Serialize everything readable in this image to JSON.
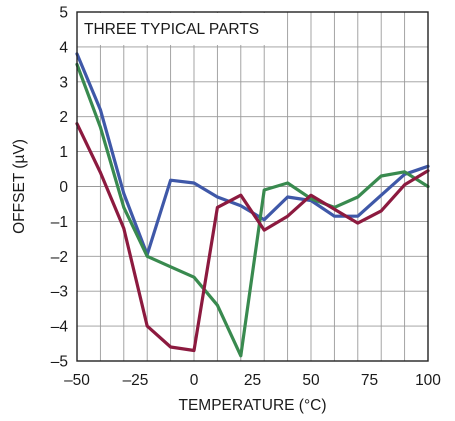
{
  "chart_data": {
    "type": "line",
    "annotation": "THREE TYPICAL PARTS",
    "xlabel": "TEMPERATURE (°C)",
    "ylabel": "OFFSET (µV)",
    "xlim": [
      -50,
      100
    ],
    "ylim": [
      -5,
      5
    ],
    "grid": true,
    "x_ticks": [
      -50,
      -40,
      -30,
      -20,
      -10,
      0,
      10,
      20,
      30,
      40,
      50,
      60,
      70,
      80,
      90,
      100
    ],
    "x_tick_labels": [
      {
        "value": -50,
        "label": "–50"
      },
      {
        "value": -25,
        "label": "–25"
      },
      {
        "value": 0,
        "label": "0"
      },
      {
        "value": 25,
        "label": "25"
      },
      {
        "value": 50,
        "label": "50"
      },
      {
        "value": 75,
        "label": "75"
      },
      {
        "value": 100,
        "label": "100"
      }
    ],
    "y_ticks": [
      {
        "value": 5,
        "label": "5"
      },
      {
        "value": 4,
        "label": "4"
      },
      {
        "value": 3,
        "label": "3"
      },
      {
        "value": 2,
        "label": "2"
      },
      {
        "value": 1,
        "label": "1"
      },
      {
        "value": 0,
        "label": "0"
      },
      {
        "value": -1,
        "label": "–1"
      },
      {
        "value": -2,
        "label": "–2"
      },
      {
        "value": -3,
        "label": "–3"
      },
      {
        "value": -4,
        "label": "–4"
      },
      {
        "value": -5,
        "label": "–5"
      }
    ],
    "series": [
      {
        "color": "#3f58a8",
        "x": [
          -50,
          -40,
          -30,
          -20,
          -10,
          0,
          10,
          20,
          30,
          40,
          50,
          60,
          70,
          80,
          90,
          100
        ],
        "y": [
          3.8,
          2.2,
          -0.2,
          -1.95,
          0.18,
          0.1,
          -0.3,
          -0.55,
          -0.95,
          -0.3,
          -0.4,
          -0.85,
          -0.85,
          -0.25,
          0.35,
          0.58
        ]
      },
      {
        "color": "#398a4f",
        "x": [
          -50,
          -40,
          -30,
          -20,
          -10,
          0,
          10,
          20,
          30,
          40,
          50,
          60,
          70,
          80,
          90,
          100
        ],
        "y": [
          3.5,
          1.7,
          -0.6,
          -2.0,
          -2.3,
          -2.6,
          -3.4,
          -4.85,
          -0.1,
          0.1,
          -0.35,
          -0.6,
          -0.3,
          0.3,
          0.42,
          0.0
        ]
      },
      {
        "color": "#8c1a3f",
        "x": [
          -50,
          -40,
          -30,
          -20,
          -10,
          0,
          10,
          20,
          30,
          40,
          50,
          60,
          70,
          80,
          90,
          100
        ],
        "y": [
          1.8,
          0.4,
          -1.2,
          -4.0,
          -4.6,
          -4.7,
          -0.6,
          -0.25,
          -1.25,
          -0.85,
          -0.25,
          -0.65,
          -1.05,
          -0.7,
          0.05,
          0.45
        ]
      }
    ]
  }
}
